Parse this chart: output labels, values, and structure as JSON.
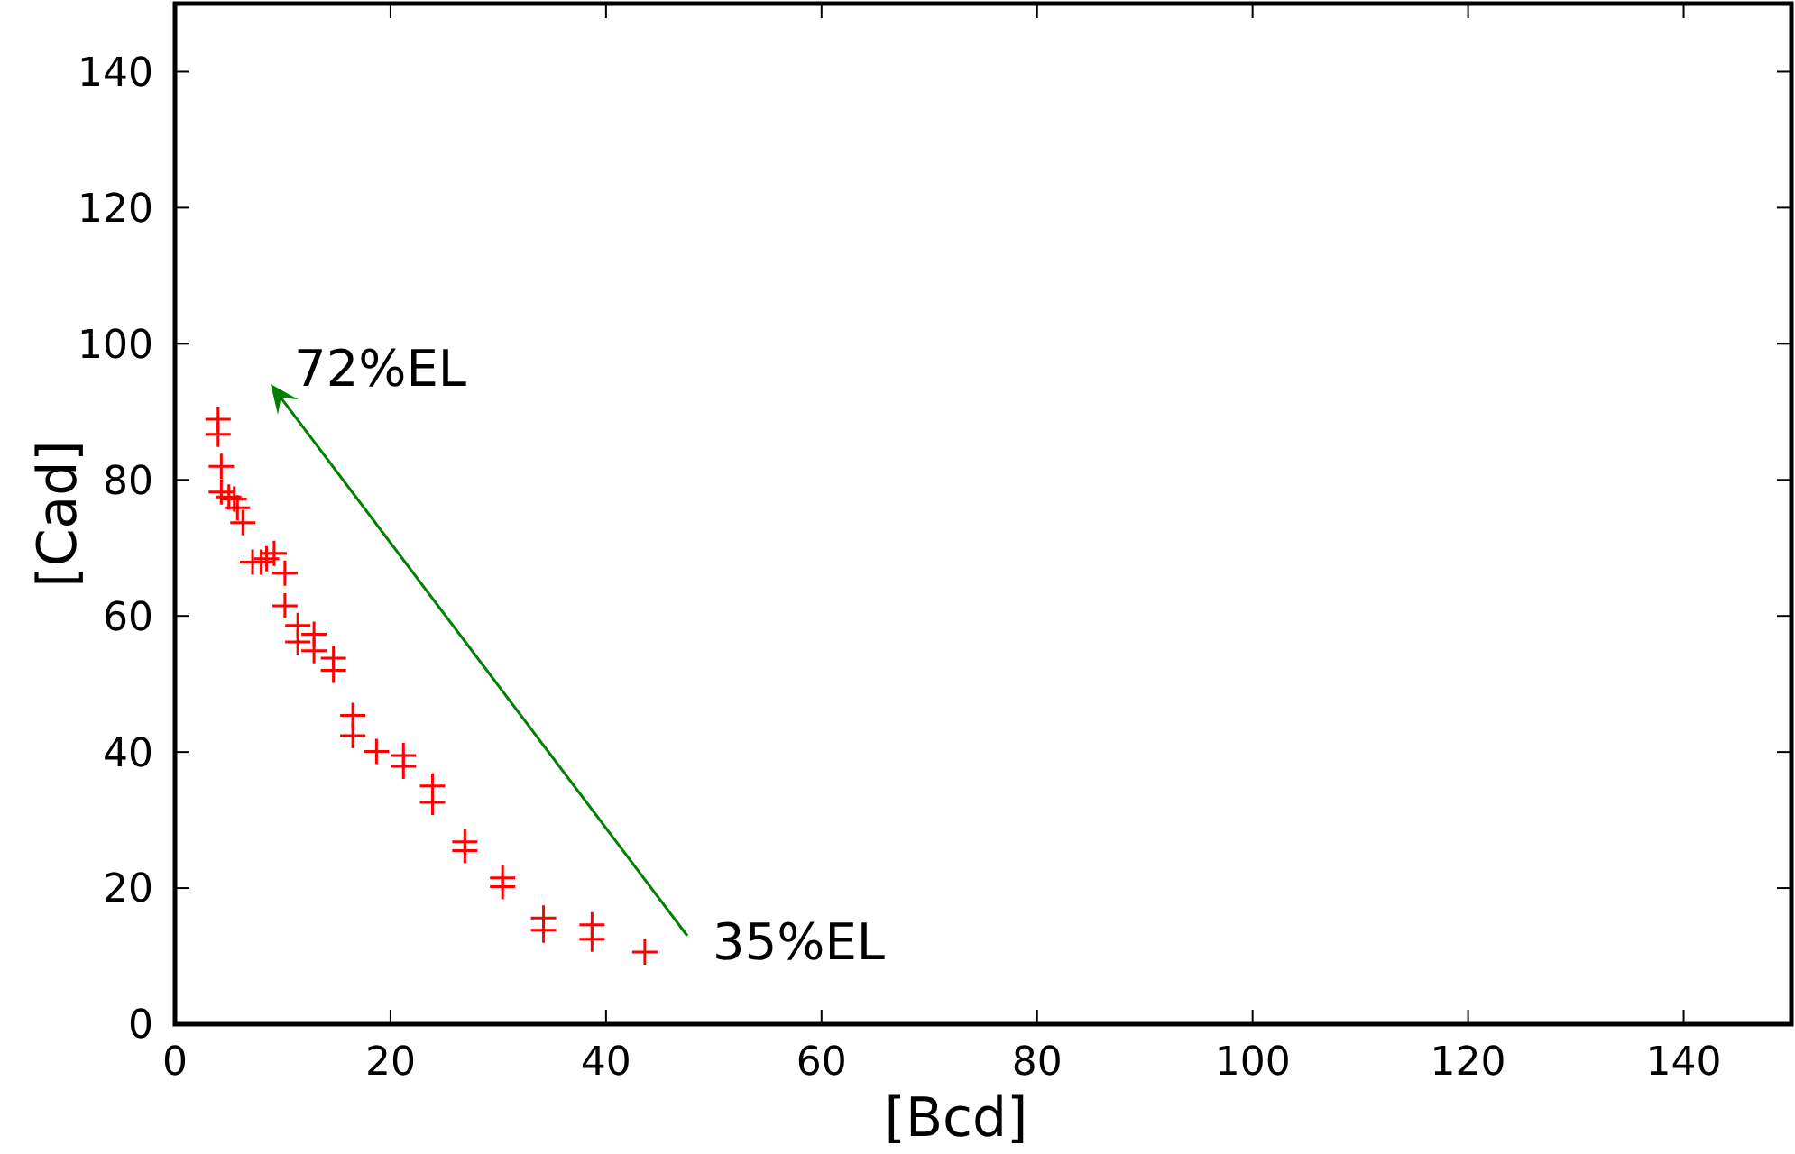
{
  "chart_data": {
    "type": "scatter",
    "xlabel": "[Bcd]",
    "ylabel": "[Cad]",
    "xlim": [
      0,
      150
    ],
    "ylim": [
      0,
      150
    ],
    "xticks": [
      0,
      20,
      40,
      60,
      80,
      100,
      120,
      140
    ],
    "yticks": [
      0,
      20,
      40,
      60,
      80,
      100,
      120,
      140
    ],
    "marker": "cross",
    "series": [
      {
        "color": "#ff0000",
        "x": [
          4.0,
          4.0,
          4.3,
          4.3,
          5.0,
          5.5,
          5.8,
          6.3,
          7.2,
          8.0,
          8.5,
          9.2,
          10.2,
          10.2,
          11.4,
          11.4,
          12.9,
          12.9,
          14.7,
          14.7,
          16.5,
          16.5,
          18.7,
          21.2,
          21.2,
          23.9,
          23.9,
          26.9,
          26.9,
          30.4,
          30.4,
          34.2,
          34.2,
          38.7,
          38.7,
          43.6
        ],
        "values": [
          88.9,
          86.7,
          82,
          78.2,
          77.5,
          77.2,
          75.9,
          73.7,
          67.9,
          67.9,
          68.4,
          69.2,
          66.3,
          61.5,
          58.6,
          56.2,
          57.3,
          54.9,
          53.8,
          52,
          45.4,
          42.4,
          40.1,
          39.5,
          37.9,
          35,
          32.6,
          26.8,
          25.5,
          21.5,
          20.2,
          15.6,
          13.8,
          14.6,
          12.5,
          10.6
        ]
      }
    ],
    "annotations": [
      "72%EL",
      "35%EL"
    ]
  }
}
